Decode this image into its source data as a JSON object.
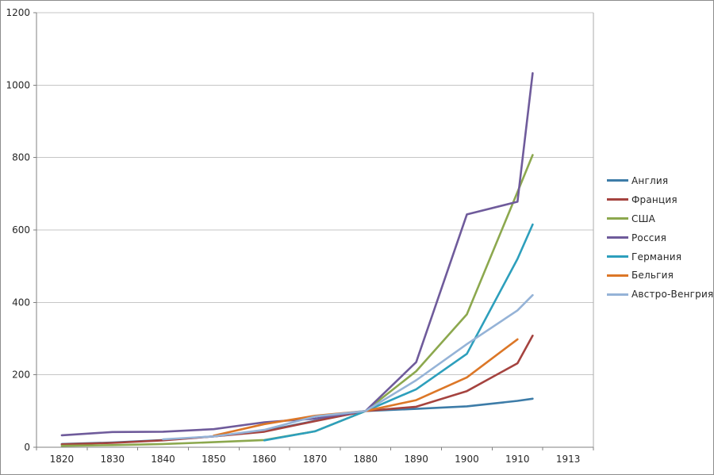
{
  "window": {
    "background": "#ffffff",
    "border_color": "#8c8c8c"
  },
  "chart_data": {
    "type": "line",
    "title": "",
    "xlabel": "",
    "ylabel": "",
    "x_labels": [
      "1820",
      "1830",
      "1840",
      "1850",
      "1860",
      "1870",
      "1880",
      "1890",
      "1900",
      "1910",
      "1913"
    ],
    "x_years": [
      1820,
      1830,
      1840,
      1850,
      1860,
      1870,
      1880,
      1890,
      1900,
      1910,
      1913
    ],
    "series": [
      {
        "name": "Англия",
        "color": "#3D7CA8",
        "values": [
          9,
          13,
          20,
          30,
          45,
          73,
          100,
          106,
          113,
          128,
          134
        ]
      },
      {
        "name": "Франция",
        "color": "#A5433F",
        "values": [
          8,
          12,
          19,
          30,
          43,
          72,
          100,
          112,
          155,
          232,
          308
        ]
      },
      {
        "name": "США",
        "color": "#8CA84E",
        "values": [
          4,
          6,
          9,
          14,
          20,
          44,
          100,
          210,
          367,
          705,
          807
        ]
      },
      {
        "name": "Россия",
        "color": "#6F5B9B",
        "values": [
          33,
          42,
          43,
          50,
          69,
          79,
          100,
          235,
          643,
          678,
          1033
        ]
      },
      {
        "name": "Германия",
        "color": "#2D9FBC",
        "values": [
          null,
          null,
          null,
          null,
          19,
          44,
          100,
          160,
          258,
          520,
          615
        ]
      },
      {
        "name": "Бельгия",
        "color": "#DC7727",
        "values": [
          null,
          null,
          null,
          32,
          64,
          87,
          100,
          130,
          193,
          298,
          null
        ]
      },
      {
        "name": "Австро-Венгрия",
        "color": "#95B3D7",
        "values": [
          null,
          null,
          22,
          30,
          48,
          85,
          100,
          185,
          285,
          378,
          420
        ]
      }
    ],
    "y_ticks": [
      "0",
      "200",
      "400",
      "600",
      "800",
      "1000",
      "1200"
    ],
    "y_tick_values": [
      0,
      200,
      400,
      600,
      800,
      1000,
      1200
    ],
    "ylim": [
      0,
      1200
    ],
    "grid": true,
    "legend_position": "right",
    "gridline_color": "#C6C6C6",
    "plot_right_border_color": "#ABABAB",
    "axis_color": "#808080",
    "text_color": "#262626",
    "line_width": 2.6
  }
}
